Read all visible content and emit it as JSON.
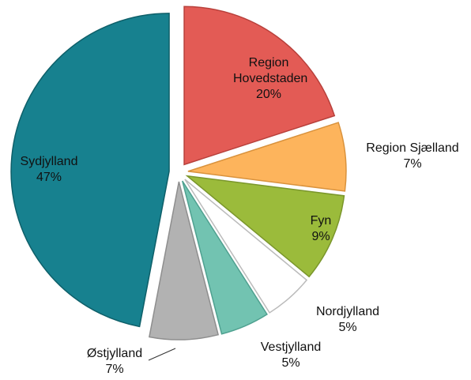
{
  "chart_data": {
    "type": "pie",
    "categories": [
      "Region Hovedstaden",
      "Region Sjælland",
      "Fyn",
      "Nordjylland",
      "Vestjylland",
      "Østjylland",
      "Sydjylland"
    ],
    "values": [
      20,
      7,
      9,
      5,
      5,
      7,
      47
    ],
    "value_labels": [
      "20%",
      "7%",
      "9%",
      "5%",
      "5%",
      "7%",
      "47%"
    ],
    "colors": [
      "#e35b55",
      "#fdb45c",
      "#9bbb3b",
      "#ffffff",
      "#72c3b1",
      "#b2b2b2",
      "#17818f"
    ]
  }
}
